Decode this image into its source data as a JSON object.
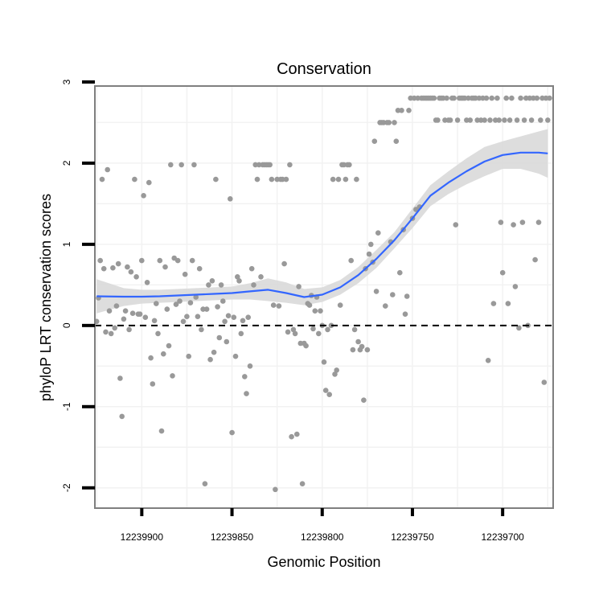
{
  "chart_data": {
    "type": "scatter",
    "title": "Conservation",
    "xlabel": "Genomic Position",
    "ylabel": "phyloP LRT conservation scores",
    "x_reversed": true,
    "xlim": [
      12239926,
      12239672
    ],
    "ylim": [
      -2.25,
      2.95
    ],
    "x_ticks": [
      12239900,
      12239850,
      12239800,
      12239750,
      12239700
    ],
    "x_tick_labels": [
      "12239900",
      "12239850",
      "12239800",
      "12239750",
      "12239700"
    ],
    "y_ticks": [
      -2,
      -1,
      0,
      1,
      2,
      3
    ],
    "y_tick_labels": [
      "-2",
      "-1",
      "0",
      "1",
      "2",
      "3"
    ],
    "reference_line": {
      "y": 0,
      "style": "dashed"
    },
    "grid": true,
    "colors": {
      "points": "#999999",
      "smooth": "#3366ff",
      "band": "#d9d9d9",
      "frame": "#7f7f7f"
    },
    "series": [
      {
        "name": "scores",
        "kind": "points",
        "points": [
          [
            12239925,
            0.05
          ],
          [
            12239924,
            0.34
          ],
          [
            12239923,
            0.8
          ],
          [
            12239922,
            1.8
          ],
          [
            12239921,
            0.7
          ],
          [
            12239920,
            -0.08
          ],
          [
            12239919,
            1.92
          ],
          [
            12239918,
            0.18
          ],
          [
            12239917,
            -0.1
          ],
          [
            12239916,
            0.71
          ],
          [
            12239915,
            -0.03
          ],
          [
            12239914,
            0.24
          ],
          [
            12239913,
            0.76
          ],
          [
            12239912,
            -0.65
          ],
          [
            12239911,
            -1.12
          ],
          [
            12239910,
            0.08
          ],
          [
            12239909,
            0.18
          ],
          [
            12239908,
            0.72
          ],
          [
            12239907,
            -0.05
          ],
          [
            12239906,
            0.66
          ],
          [
            12239905,
            0.15
          ],
          [
            12239904,
            1.8
          ],
          [
            12239903,
            0.6
          ],
          [
            12239902,
            0.14
          ],
          [
            12239901,
            0.14
          ],
          [
            12239900,
            0.8
          ],
          [
            12239899,
            1.6
          ],
          [
            12239898,
            0.1
          ],
          [
            12239897,
            0.53
          ],
          [
            12239896,
            1.76
          ],
          [
            12239895,
            -0.4
          ],
          [
            12239894,
            -0.72
          ],
          [
            12239893,
            0.06
          ],
          [
            12239892,
            0.27
          ],
          [
            12239891,
            -0.1
          ],
          [
            12239890,
            0.8
          ],
          [
            12239889,
            -1.3
          ],
          [
            12239888,
            -0.35
          ],
          [
            12239887,
            0.72
          ],
          [
            12239886,
            0.2
          ],
          [
            12239885,
            -0.25
          ],
          [
            12239884,
            1.98
          ],
          [
            12239883,
            -0.62
          ],
          [
            12239882,
            0.83
          ],
          [
            12239881,
            0.26
          ],
          [
            12239880,
            0.8
          ],
          [
            12239879,
            0.3
          ],
          [
            12239878,
            1.98
          ],
          [
            12239877,
            0.05
          ],
          [
            12239876,
            0.63
          ],
          [
            12239875,
            0.11
          ],
          [
            12239874,
            -0.38
          ],
          [
            12239873,
            0.28
          ],
          [
            12239872,
            0.8
          ],
          [
            12239871,
            1.98
          ],
          [
            12239870,
            0.35
          ],
          [
            12239869,
            0.11
          ],
          [
            12239868,
            0.7
          ],
          [
            12239867,
            -0.05
          ],
          [
            12239866,
            0.2
          ],
          [
            12239865,
            -1.95
          ],
          [
            12239864,
            0.2
          ],
          [
            12239863,
            0.5
          ],
          [
            12239862,
            -0.42
          ],
          [
            12239861,
            0.55
          ],
          [
            12239860,
            -0.33
          ],
          [
            12239859,
            1.8
          ],
          [
            12239858,
            0.23
          ],
          [
            12239857,
            -0.15
          ],
          [
            12239856,
            0.5
          ],
          [
            12239855,
            0.3
          ],
          [
            12239854,
            0.05
          ],
          [
            12239853,
            -0.2
          ],
          [
            12239852,
            0.12
          ],
          [
            12239851,
            1.56
          ],
          [
            12239850,
            -1.32
          ],
          [
            12239849,
            0.1
          ],
          [
            12239848,
            -0.38
          ],
          [
            12239847,
            0.6
          ],
          [
            12239846,
            0.55
          ],
          [
            12239845,
            -0.1
          ],
          [
            12239844,
            0.06
          ],
          [
            12239843,
            -0.63
          ],
          [
            12239842,
            -0.84
          ],
          [
            12239841,
            0.1
          ],
          [
            12239840,
            -0.5
          ],
          [
            12239839,
            0.7
          ],
          [
            12239838,
            0.5
          ],
          [
            12239837,
            1.98
          ],
          [
            12239836,
            1.8
          ],
          [
            12239835,
            1.98
          ],
          [
            12239834,
            0.6
          ],
          [
            12239833,
            1.98
          ],
          [
            12239832,
            1.98
          ],
          [
            12239831,
            1.98
          ],
          [
            12239830,
            1.98
          ],
          [
            12239829,
            1.98
          ],
          [
            12239828,
            1.8
          ],
          [
            12239827,
            0.25
          ],
          [
            12239826,
            -2.02
          ],
          [
            12239825,
            1.8
          ],
          [
            12239824,
            0.24
          ],
          [
            12239823,
            1.8
          ],
          [
            12239822,
            1.8
          ],
          [
            12239821,
            0.76
          ],
          [
            12239820,
            1.8
          ],
          [
            12239819,
            -0.08
          ],
          [
            12239818,
            1.98
          ],
          [
            12239817,
            -1.37
          ],
          [
            12239816,
            -0.05
          ],
          [
            12239815,
            -0.1
          ],
          [
            12239814,
            -1.34
          ],
          [
            12239813,
            0.48
          ],
          [
            12239812,
            -0.22
          ],
          [
            12239811,
            -1.95
          ],
          [
            12239810,
            -0.22
          ],
          [
            12239809,
            -0.25
          ],
          [
            12239808,
            0.27
          ],
          [
            12239807,
            0.25
          ],
          [
            12239806,
            0.37
          ],
          [
            12239805,
            -0.04
          ],
          [
            12239804,
            0.18
          ],
          [
            12239803,
            0.35
          ],
          [
            12239802,
            -0.1
          ],
          [
            12239801,
            0.18
          ],
          [
            12239800,
            0.0
          ],
          [
            12239799,
            -0.45
          ],
          [
            12239798,
            -0.8
          ],
          [
            12239797,
            -0.05
          ],
          [
            12239796,
            -0.85
          ],
          [
            12239795,
            0.0
          ],
          [
            12239794,
            1.8
          ],
          [
            12239793,
            -0.6
          ],
          [
            12239792,
            -0.55
          ],
          [
            12239791,
            1.8
          ],
          [
            12239790,
            0.25
          ],
          [
            12239789,
            1.98
          ],
          [
            12239788,
            1.98
          ],
          [
            12239787,
            1.8
          ],
          [
            12239786,
            1.98
          ],
          [
            12239785,
            1.98
          ],
          [
            12239784,
            0.8
          ],
          [
            12239783,
            -0.3
          ],
          [
            12239782,
            -0.05
          ],
          [
            12239781,
            1.8
          ],
          [
            12239780,
            -0.2
          ],
          [
            12239779,
            -0.3
          ],
          [
            12239778,
            -0.26
          ],
          [
            12239777,
            -0.92
          ],
          [
            12239776,
            0.7
          ],
          [
            12239775,
            -0.3
          ],
          [
            12239774,
            0.88
          ],
          [
            12239773,
            1.0
          ],
          [
            12239772,
            0.78
          ],
          [
            12239771,
            2.27
          ],
          [
            12239770,
            0.42
          ],
          [
            12239769,
            1.14
          ],
          [
            12239768,
            2.5
          ],
          [
            12239767,
            2.5
          ],
          [
            12239766,
            2.5
          ],
          [
            12239765,
            0.24
          ],
          [
            12239764,
            2.5
          ],
          [
            12239763,
            2.5
          ],
          [
            12239762,
            1.03
          ],
          [
            12239761,
            0.38
          ],
          [
            12239760,
            2.5
          ],
          [
            12239759,
            2.27
          ],
          [
            12239758,
            2.65
          ],
          [
            12239757,
            0.65
          ],
          [
            12239756,
            2.65
          ],
          [
            12239755,
            1.18
          ],
          [
            12239754,
            0.14
          ],
          [
            12239753,
            0.36
          ],
          [
            12239752,
            2.65
          ],
          [
            12239751,
            2.8
          ],
          [
            12239750,
            1.32
          ],
          [
            12239749,
            2.8
          ],
          [
            12239748,
            1.43
          ],
          [
            12239747,
            2.8
          ],
          [
            12239746,
            1.46
          ],
          [
            12239745,
            2.8
          ],
          [
            12239744,
            2.8
          ],
          [
            12239743,
            2.8
          ],
          [
            12239742,
            2.8
          ],
          [
            12239741,
            2.8
          ],
          [
            12239740,
            2.8
          ],
          [
            12239739,
            2.8
          ],
          [
            12239738,
            2.8
          ],
          [
            12239737,
            2.53
          ],
          [
            12239736,
            2.53
          ],
          [
            12239735,
            2.8
          ],
          [
            12239734,
            2.8
          ],
          [
            12239733,
            2.8
          ],
          [
            12239732,
            2.53
          ],
          [
            12239731,
            2.8
          ],
          [
            12239730,
            2.53
          ],
          [
            12239729,
            2.53
          ],
          [
            12239728,
            2.8
          ],
          [
            12239727,
            2.8
          ],
          [
            12239726,
            1.24
          ],
          [
            12239725,
            2.53
          ],
          [
            12239724,
            2.8
          ],
          [
            12239723,
            2.8
          ],
          [
            12239722,
            2.8
          ],
          [
            12239721,
            2.8
          ],
          [
            12239720,
            2.53
          ],
          [
            12239719,
            2.8
          ],
          [
            12239718,
            2.53
          ],
          [
            12239717,
            2.8
          ],
          [
            12239716,
            2.8
          ],
          [
            12239715,
            2.8
          ],
          [
            12239714,
            2.53
          ],
          [
            12239713,
            2.8
          ],
          [
            12239712,
            2.53
          ],
          [
            12239711,
            2.8
          ],
          [
            12239710,
            2.53
          ],
          [
            12239709,
            2.8
          ],
          [
            12239708,
            -0.43
          ],
          [
            12239707,
            2.53
          ],
          [
            12239706,
            2.8
          ],
          [
            12239705,
            0.27
          ],
          [
            12239704,
            2.53
          ],
          [
            12239703,
            2.8
          ],
          [
            12239702,
            2.53
          ],
          [
            12239701,
            1.27
          ],
          [
            12239700,
            0.65
          ],
          [
            12239699,
            2.53
          ],
          [
            12239698,
            2.8
          ],
          [
            12239697,
            0.27
          ],
          [
            12239696,
            2.53
          ],
          [
            12239695,
            2.8
          ],
          [
            12239694,
            1.24
          ],
          [
            12239693,
            0.48
          ],
          [
            12239692,
            2.53
          ],
          [
            12239691,
            -0.03
          ],
          [
            12239690,
            2.8
          ],
          [
            12239689,
            1.27
          ],
          [
            12239688,
            2.53
          ],
          [
            12239687,
            2.8
          ],
          [
            12239686,
            0.0
          ],
          [
            12239685,
            2.8
          ],
          [
            12239684,
            2.53
          ],
          [
            12239683,
            2.8
          ],
          [
            12239682,
            0.81
          ],
          [
            12239681,
            2.8
          ],
          [
            12239680,
            1.27
          ],
          [
            12239679,
            2.53
          ],
          [
            12239678,
            2.8
          ],
          [
            12239677,
            -0.7
          ],
          [
            12239676,
            2.8
          ],
          [
            12239675,
            2.53
          ],
          [
            12239674,
            2.8
          ]
        ]
      },
      {
        "name": "smooth",
        "kind": "line_with_band",
        "x": [
          12239925,
          12239910,
          12239900,
          12239890,
          12239880,
          12239870,
          12239860,
          12239850,
          12239840,
          12239830,
          12239820,
          12239810,
          12239800,
          12239790,
          12239780,
          12239770,
          12239760,
          12239750,
          12239740,
          12239730,
          12239720,
          12239710,
          12239700,
          12239690,
          12239680,
          12239675
        ],
        "y": [
          0.36,
          0.355,
          0.355,
          0.36,
          0.37,
          0.38,
          0.39,
          0.4,
          0.42,
          0.44,
          0.4,
          0.35,
          0.38,
          0.47,
          0.62,
          0.82,
          1.05,
          1.32,
          1.6,
          1.76,
          1.9,
          2.02,
          2.1,
          2.13,
          2.13,
          2.12
        ],
        "lower": [
          0.15,
          0.24,
          0.27,
          0.28,
          0.29,
          0.3,
          0.31,
          0.32,
          0.32,
          0.3,
          0.28,
          0.25,
          0.29,
          0.38,
          0.52,
          0.71,
          0.95,
          1.2,
          1.47,
          1.62,
          1.74,
          1.84,
          1.93,
          1.93,
          1.87,
          1.82
        ],
        "upper": [
          0.57,
          0.46,
          0.44,
          0.44,
          0.45,
          0.46,
          0.47,
          0.48,
          0.52,
          0.58,
          0.53,
          0.45,
          0.47,
          0.56,
          0.72,
          0.93,
          1.15,
          1.44,
          1.73,
          1.9,
          2.06,
          2.2,
          2.27,
          2.33,
          2.39,
          2.42
        ]
      }
    ]
  }
}
